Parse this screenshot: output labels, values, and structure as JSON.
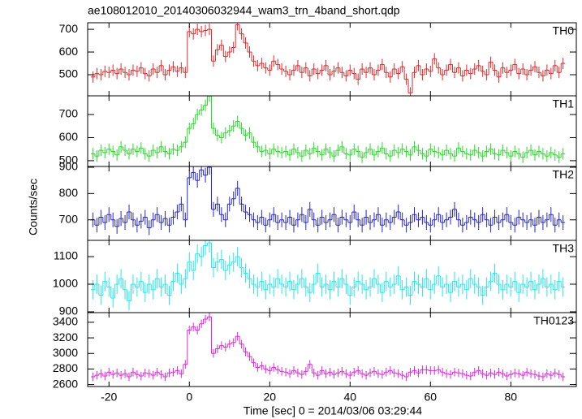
{
  "chart_data": {
    "type": "step",
    "title": "ae108012010_20140306032944_wam3_trn_4band_short.qdp",
    "xlabel": "Time [sec] 0 = 2014/03/06 03:29:44",
    "ylabel": "Counts/sec",
    "xlim": [
      -25.3,
      96.3
    ],
    "xticks": [
      -20,
      0,
      20,
      40,
      60,
      80
    ],
    "x": [
      -24,
      -23,
      -22,
      -21,
      -20,
      -19,
      -18,
      -17,
      -16,
      -15,
      -14,
      -13,
      -12,
      -11,
      -10,
      -9,
      -8,
      -7,
      -6,
      -5,
      -4,
      -3,
      -2,
      -1,
      0,
      1,
      2,
      3,
      4,
      5,
      6,
      7,
      8,
      9,
      10,
      11,
      12,
      13,
      14,
      15,
      16,
      17,
      18,
      19,
      20,
      21,
      22,
      23,
      24,
      25,
      26,
      27,
      28,
      29,
      30,
      31,
      32,
      33,
      34,
      35,
      36,
      37,
      38,
      39,
      40,
      41,
      42,
      43,
      44,
      45,
      46,
      47,
      48,
      49,
      50,
      51,
      52,
      53,
      54,
      55,
      56,
      57,
      58,
      59,
      60,
      61,
      62,
      63,
      64,
      65,
      66,
      67,
      68,
      69,
      70,
      71,
      72,
      73,
      74,
      75,
      76,
      77,
      78,
      79,
      80,
      81,
      82,
      83,
      84,
      85,
      86,
      87,
      88,
      89,
      90,
      91,
      92,
      93
    ],
    "series": [
      {
        "name": "TH0",
        "color": "#e3282a",
        "error": 25,
        "ylim": [
          407,
          729
        ],
        "yticks": [
          500,
          600,
          700
        ],
        "values": [
          490,
          505,
          500,
          515,
          510,
          520,
          505,
          525,
          510,
          500,
          520,
          515,
          530,
          505,
          495,
          525,
          510,
          540,
          500,
          520,
          535,
          515,
          530,
          510,
          690,
          680,
          700,
          690,
          695,
          700,
          560,
          610,
          630,
          580,
          600,
          620,
          720,
          680,
          640,
          600,
          560,
          540,
          550,
          530,
          520,
          560,
          545,
          525,
          515,
          500,
          520,
          540,
          510,
          530,
          495,
          525,
          505,
          520,
          540,
          500,
          515,
          530,
          510,
          495,
          520,
          505,
          480,
          525,
          510,
          530,
          500,
          520,
          545,
          510,
          490,
          525,
          505,
          535,
          480,
          420,
          510,
          540,
          500,
          525,
          515,
          570,
          530,
          500,
          520,
          545,
          510,
          530,
          495,
          520,
          505,
          525,
          540,
          515,
          500,
          555,
          520,
          490,
          530,
          510,
          520,
          545,
          505,
          525,
          500,
          520,
          535,
          510,
          495,
          520,
          505,
          540,
          510,
          550
        ]
      },
      {
        "name": "TH1",
        "color": "#22dd22",
        "error": 25,
        "ylim": [
          475,
          781
        ],
        "yticks": [
          500,
          600,
          700
        ],
        "values": [
          530,
          520,
          545,
          535,
          550,
          540,
          525,
          560,
          545,
          530,
          550,
          540,
          555,
          530,
          520,
          545,
          535,
          560,
          540,
          530,
          550,
          545,
          560,
          580,
          640,
          660,
          700,
          720,
          740,
          780,
          640,
          610,
          600,
          620,
          630,
          650,
          670,
          640,
          610,
          620,
          580,
          560,
          540,
          545,
          530,
          550,
          540,
          535,
          540,
          525,
          550,
          535,
          520,
          545,
          530,
          555,
          540,
          525,
          550,
          535,
          520,
          545,
          560,
          530,
          525,
          550,
          540,
          515,
          535,
          550,
          525,
          540,
          555,
          530,
          520,
          545,
          535,
          550,
          540,
          525,
          560,
          545,
          530,
          520,
          550,
          540,
          535,
          525,
          545,
          530,
          520,
          555,
          540,
          530,
          525,
          545,
          535,
          520,
          540,
          550,
          530,
          525,
          545,
          535,
          520,
          540,
          530,
          515,
          535,
          545,
          525,
          540,
          530,
          520,
          535,
          525,
          515,
          530
        ]
      },
      {
        "name": "TH2",
        "color": "#2626c8",
        "error": 28,
        "ylim": [
          622,
          903
        ],
        "yticks": [
          700,
          800,
          900
        ],
        "values": [
          700,
          680,
          710,
          690,
          720,
          700,
          675,
          705,
          690,
          730,
          700,
          680,
          695,
          710,
          670,
          700,
          720,
          690,
          705,
          680,
          710,
          730,
          760,
          700,
          860,
          880,
          850,
          890,
          870,
          900,
          740,
          760,
          720,
          700,
          760,
          780,
          820,
          760,
          730,
          720,
          700,
          690,
          710,
          680,
          700,
          720,
          690,
          700,
          690,
          710,
          680,
          700,
          720,
          690,
          740,
          700,
          680,
          710,
          690,
          700,
          720,
          680,
          710,
          700,
          690,
          730,
          700,
          680,
          710,
          690,
          700,
          720,
          680,
          700,
          690,
          710,
          730,
          700,
          680,
          690,
          720,
          700,
          710,
          690,
          680,
          700,
          720,
          690,
          700,
          710,
          740,
          700,
          680,
          690,
          710,
          700,
          690,
          720,
          700,
          680,
          710,
          690,
          700,
          720,
          690,
          680,
          710,
          700,
          690,
          700,
          680,
          710,
          690,
          700,
          720,
          680,
          700,
          690
        ]
      },
      {
        "name": "TH3",
        "color": "#22e8ee",
        "error": 35,
        "ylim": [
          897,
          1159
        ],
        "yticks": [
          900,
          1000,
          1100
        ],
        "values": [
          980,
          1000,
          960,
          1010,
          990,
          950,
          1000,
          1020,
          980,
          940,
          1000,
          990,
          1010,
          970,
          1000,
          980,
          1020,
          990,
          1000,
          960,
          1010,
          1040,
          1000,
          1020,
          1080,
          1050,
          1110,
          1100,
          1140,
          1150,
          1060,
          1080,
          1090,
          1050,
          1070,
          1080,
          1100,
          1060,
          1040,
          1020,
          1000,
          990,
          1010,
          980,
          1000,
          990,
          1020,
          1000,
          990,
          1010,
          980,
          1000,
          1020,
          990,
          970,
          1000,
          1040,
          990,
          1000,
          980,
          1010,
          990,
          1020,
          1000,
          960,
          990,
          1010,
          1000,
          980,
          990,
          1020,
          1000,
          970,
          1010,
          990,
          1000,
          1030,
          980,
          990,
          960,
          1010,
          1000,
          990,
          1020,
          980,
          1000,
          1030,
          990,
          1000,
          970,
          1010,
          990,
          1000,
          980,
          1020,
          1000,
          990,
          960,
          990,
          1010,
          1040,
          1000,
          980,
          1000,
          990,
          1010,
          970,
          1000,
          990,
          1010,
          980,
          1000,
          1020,
          990,
          1000,
          980,
          1010,
          990
        ]
      },
      {
        "name": "TH0123",
        "color": "#dd26dd",
        "error": 55,
        "ylim": [
          2575,
          3524
        ],
        "yticks": [
          2600,
          2800,
          3000,
          3200,
          3400
        ],
        "values": [
          2700,
          2720,
          2740,
          2710,
          2760,
          2730,
          2750,
          2720,
          2740,
          2700,
          2760,
          2730,
          2710,
          2750,
          2740,
          2720,
          2760,
          2730,
          2700,
          2750,
          2760,
          2780,
          2740,
          2860,
          3300,
          3340,
          3300,
          3380,
          3440,
          3470,
          3000,
          3060,
          3100,
          3080,
          3120,
          3140,
          3220,
          3120,
          3020,
          2960,
          2880,
          2820,
          2840,
          2800,
          2780,
          2820,
          2790,
          2770,
          2760,
          2740,
          2780,
          2750,
          2730,
          2770,
          2860,
          2750,
          2720,
          2780,
          2740,
          2760,
          2730,
          2750,
          2770,
          2740,
          2720,
          2760,
          2780,
          2740,
          2720,
          2750,
          2770,
          2740,
          2730,
          2760,
          2780,
          2750,
          2740,
          2720,
          2700,
          2760,
          2780,
          2750,
          2790,
          2790,
          2780,
          2780,
          2790,
          2760,
          2740,
          2730,
          2760,
          2750,
          2740,
          2720,
          2710,
          2760,
          2780,
          2740,
          2720,
          2750,
          2730,
          2760,
          2740,
          2710,
          2730,
          2750,
          2740,
          2720,
          2760,
          2740,
          2730,
          2710,
          2700,
          2740,
          2720,
          2750,
          2730,
          2700
        ]
      }
    ]
  }
}
